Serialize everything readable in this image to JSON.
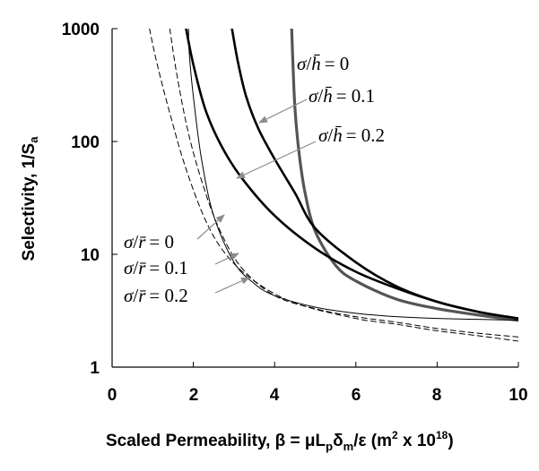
{
  "chart_data": {
    "type": "line",
    "xlabel": "Scaled Permeability, β = μL",
    "xlabel_parts": {
      "main": "Scaled Permeability, β = μL",
      "sub1": "p",
      "mid": "δ",
      "sub2": "m",
      "rest": "/ε (m",
      "sup1": "2",
      "rest2": " x 10",
      "sup2": "18",
      "close": ")"
    },
    "ylabel": "Selectivity, 1/S",
    "ylabel_sub": "a",
    "xlim": [
      0,
      10
    ],
    "ylim": [
      1,
      1000
    ],
    "yscale": "log",
    "grid": false,
    "x_ticks": [
      "0",
      "2",
      "4",
      "6",
      "8",
      "10"
    ],
    "y_ticks": [
      "1",
      "10",
      "100",
      "1000"
    ],
    "series": [
      {
        "name": "σ/h̄ = 0",
        "style": "solid-heavy-gray",
        "points": [
          [
            4.42,
            1000
          ],
          [
            4.45,
            500
          ],
          [
            4.5,
            200
          ],
          [
            4.6,
            80
          ],
          [
            4.75,
            35
          ],
          [
            5.0,
            16
          ],
          [
            5.5,
            8
          ],
          [
            6.0,
            5.8
          ],
          [
            7.0,
            4.0
          ],
          [
            8.0,
            3.3
          ],
          [
            9.0,
            2.9
          ],
          [
            10.0,
            2.6
          ]
        ]
      },
      {
        "name": "σ/h̄ = 0.1",
        "style": "solid-thick",
        "points": [
          [
            2.95,
            1000
          ],
          [
            3.1,
            500
          ],
          [
            3.3,
            250
          ],
          [
            3.6,
            130
          ],
          [
            4.0,
            70
          ],
          [
            4.5,
            35
          ],
          [
            5.0,
            17
          ],
          [
            6.0,
            8.5
          ],
          [
            7.0,
            5.2
          ],
          [
            8.0,
            3.8
          ],
          [
            9.0,
            3.1
          ],
          [
            10.0,
            2.7
          ]
        ]
      },
      {
        "name": "σ/h̄ = 0.2",
        "style": "solid-thick",
        "points": [
          [
            1.82,
            1000
          ],
          [
            2.0,
            480
          ],
          [
            2.3,
            190
          ],
          [
            2.7,
            90
          ],
          [
            3.2,
            47
          ],
          [
            4.0,
            22
          ],
          [
            5.0,
            11.3
          ],
          [
            6.0,
            7.0
          ],
          [
            7.0,
            5.0
          ],
          [
            8.0,
            3.8
          ],
          [
            9.0,
            3.1
          ],
          [
            10.0,
            2.7
          ]
        ]
      },
      {
        "name": "σ/r̄ = 0",
        "style": "solid-thin",
        "points": [
          [
            1.88,
            1000
          ],
          [
            1.9,
            600
          ],
          [
            2.0,
            250
          ],
          [
            2.2,
            70
          ],
          [
            2.5,
            22
          ],
          [
            3.0,
            8.5
          ],
          [
            3.5,
            5.5
          ],
          [
            4.0,
            4.3
          ],
          [
            5.0,
            3.4
          ],
          [
            6.0,
            3.0
          ],
          [
            7.0,
            2.8
          ],
          [
            8.0,
            2.7
          ],
          [
            9.0,
            2.65
          ],
          [
            10.0,
            2.6
          ]
        ]
      },
      {
        "name": "σ/r̄ = 0.1",
        "style": "dashed",
        "points": [
          [
            1.42,
            1000
          ],
          [
            1.6,
            380
          ],
          [
            1.9,
            110
          ],
          [
            2.3,
            35
          ],
          [
            2.7,
            15
          ],
          [
            3.2,
            7.5
          ],
          [
            4.0,
            4.3
          ],
          [
            5.0,
            3.3
          ],
          [
            6.0,
            2.8
          ],
          [
            7.0,
            2.5
          ],
          [
            8.0,
            2.2
          ],
          [
            9.0,
            2.0
          ],
          [
            10.0,
            1.85
          ]
        ]
      },
      {
        "name": "σ/r̄ = 0.2",
        "style": "dashed",
        "points": [
          [
            0.92,
            1000
          ],
          [
            1.1,
            500
          ],
          [
            1.4,
            190
          ],
          [
            1.8,
            60
          ],
          [
            2.3,
            20
          ],
          [
            2.8,
            10
          ],
          [
            3.5,
            5.8
          ],
          [
            4.5,
            3.7
          ],
          [
            6.0,
            2.7
          ],
          [
            7.0,
            2.4
          ],
          [
            8.0,
            2.1
          ],
          [
            9.0,
            1.9
          ],
          [
            10.0,
            1.7
          ]
        ]
      }
    ],
    "annotations": [
      {
        "base": "σ",
        "slash": "/",
        "var": "h̄",
        "value": "= 0"
      },
      {
        "base": "σ",
        "slash": "/",
        "var": "h̄",
        "value": "= 0.1"
      },
      {
        "base": "σ",
        "slash": "/",
        "var": "h̄",
        "value": "= 0.2"
      },
      {
        "base": "σ",
        "slash": "/",
        "var": "r̄",
        "value": "= 0"
      },
      {
        "base": "σ",
        "slash": "/",
        "var": "r̄",
        "value": "= 0.1"
      },
      {
        "base": "σ",
        "slash": "/",
        "var": "r̄",
        "value": "= 0.2"
      }
    ],
    "colors": {
      "heavy_gray": "#555555",
      "black": "#000000",
      "arrow_gray": "#8c8c8c"
    }
  }
}
